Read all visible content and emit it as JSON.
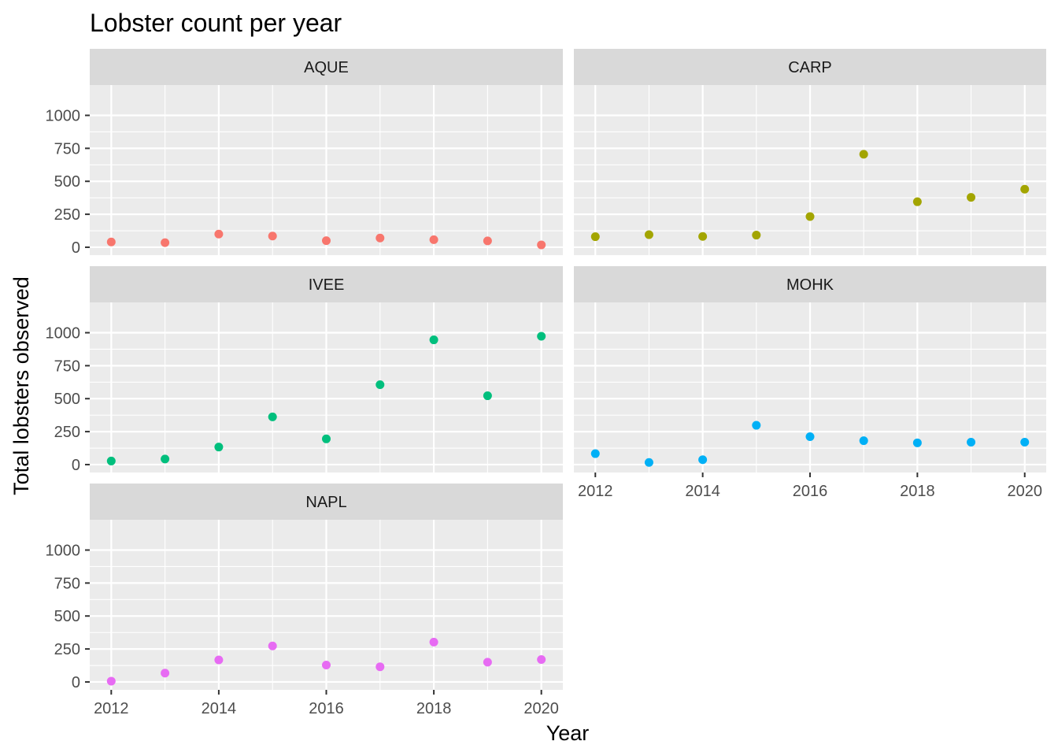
{
  "chart_data": {
    "type": "scatter",
    "title": "Lobster count per year",
    "xlabel": "Year",
    "ylabel": "Total lobsters observed",
    "x_ticks": [
      2012,
      2014,
      2016,
      2018,
      2020
    ],
    "y_ticks": [
      0,
      250,
      500,
      750,
      1000
    ],
    "xlim": [
      2011.6,
      2020.4
    ],
    "ylim": [
      -60,
      1230
    ],
    "grid": true,
    "legend": "none",
    "facets": [
      {
        "name": "AQUE",
        "color": "#F8766D",
        "x": [
          2012,
          2013,
          2014,
          2015,
          2016,
          2017,
          2018,
          2019,
          2020
        ],
        "y": [
          40,
          35,
          100,
          85,
          50,
          70,
          57,
          48,
          18
        ]
      },
      {
        "name": "CARP",
        "color": "#A3A500",
        "x": [
          2012,
          2013,
          2014,
          2015,
          2016,
          2017,
          2018,
          2019,
          2020
        ],
        "y": [
          80,
          95,
          82,
          92,
          233,
          705,
          345,
          378,
          440
        ]
      },
      {
        "name": "IVEE",
        "color": "#00BF7D",
        "x": [
          2012,
          2013,
          2014,
          2015,
          2016,
          2017,
          2018,
          2019,
          2020
        ],
        "y": [
          27,
          42,
          133,
          362,
          195,
          606,
          946,
          522,
          973
        ]
      },
      {
        "name": "MOHK",
        "color": "#00B0F6",
        "x": [
          2012,
          2013,
          2014,
          2015,
          2016,
          2017,
          2018,
          2019,
          2020
        ],
        "y": [
          83,
          16,
          37,
          298,
          212,
          181,
          165,
          170,
          170
        ]
      },
      {
        "name": "NAPL",
        "color": "#E76BF3",
        "x": [
          2012,
          2013,
          2014,
          2015,
          2016,
          2017,
          2018,
          2019,
          2020
        ],
        "y": [
          6,
          67,
          167,
          273,
          128,
          115,
          302,
          150,
          170
        ]
      }
    ]
  }
}
